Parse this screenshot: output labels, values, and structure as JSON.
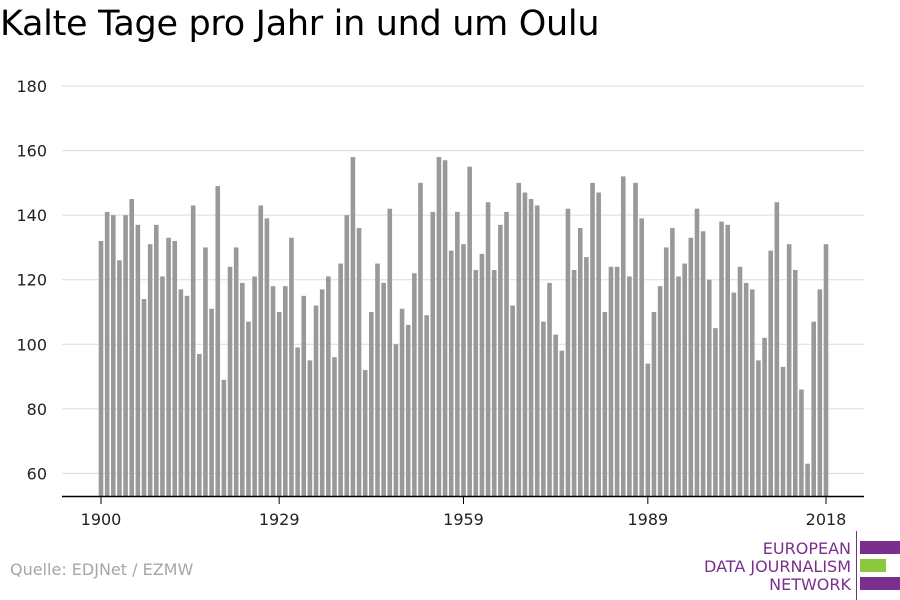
{
  "chart_data": {
    "type": "bar",
    "title": "Kalte Tage pro Jahr in und um Oulu",
    "xlabel": "",
    "ylabel": "",
    "x_start": 1900,
    "x_end": 2018,
    "xlim": [
      1900,
      2018
    ],
    "ylim": [
      53,
      180
    ],
    "yticks": [
      60,
      80,
      100,
      120,
      140,
      160,
      180
    ],
    "xticks": [
      1900,
      1929,
      1959,
      1989,
      2018
    ],
    "grid": true,
    "legend": "none",
    "bar_color": "#999999",
    "series": [
      {
        "values": [
          132,
          141,
          140,
          126,
          140,
          145,
          137,
          114,
          131,
          137,
          121,
          133,
          132,
          117,
          115,
          143,
          97,
          130,
          111,
          149,
          89,
          124,
          130,
          119,
          107,
          121,
          143,
          139,
          118,
          110,
          118,
          133,
          99,
          115,
          95,
          112,
          117,
          121,
          96,
          125,
          140,
          158,
          136,
          92,
          110,
          125,
          119,
          142,
          100,
          111,
          106,
          122,
          150,
          109,
          141,
          158,
          157,
          129,
          141,
          131,
          155,
          123,
          128,
          144,
          123,
          137,
          141,
          112,
          150,
          147,
          145,
          143,
          107,
          119,
          103,
          98,
          142,
          123,
          136,
          127,
          150,
          147,
          110,
          124,
          124,
          152,
          121,
          150,
          139,
          94,
          110,
          118,
          130,
          136,
          121,
          125,
          133,
          142,
          135,
          120,
          105,
          138,
          137,
          116,
          124,
          119,
          117,
          95,
          102,
          129,
          144,
          93,
          131,
          123,
          86,
          63,
          107,
          117,
          131
        ]
      }
    ]
  },
  "source": "Quelle: EDJNet / EZMW",
  "logo": {
    "lines": [
      "EUROPEAN",
      "DATA JOURNALISM",
      "NETWORK"
    ],
    "text_color": "#7a2f8e",
    "bar_colors": [
      "#7a2f8e",
      "#8dc63f",
      "#7a2f8e"
    ]
  },
  "colors": {
    "grid": "#dcdcdc",
    "axis": "#000000",
    "text": "#222222",
    "source": "#a6a6a6"
  }
}
